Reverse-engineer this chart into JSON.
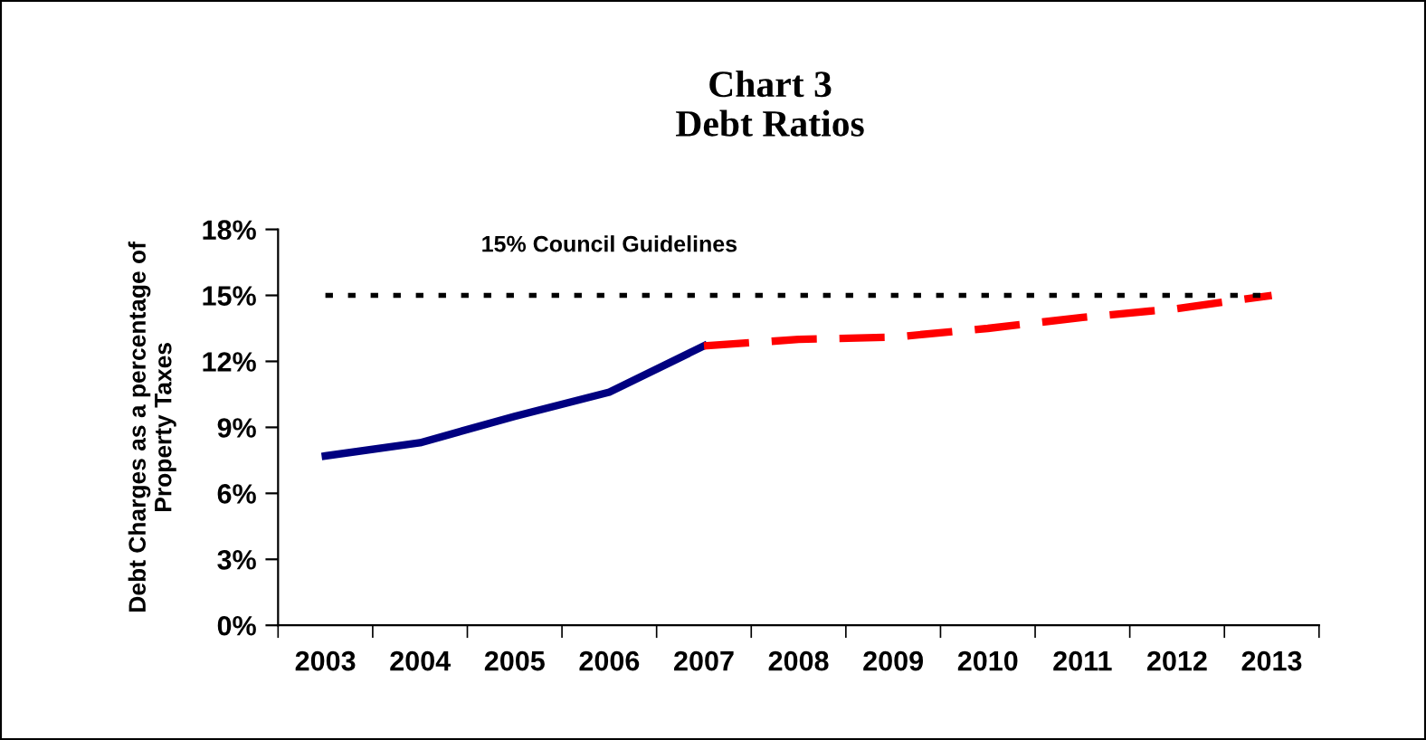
{
  "chart_data": {
    "type": "line",
    "title": "Chart 3\nDebt Ratios",
    "ylabel": "Debt Charges as a percentage of\nProperty Taxes",
    "categories": [
      "2003",
      "2004",
      "2005",
      "2006",
      "2007",
      "2008",
      "2009",
      "2010",
      "2011",
      "2012",
      "2013"
    ],
    "series": [
      {
        "color": "#000080",
        "line_style": "solid",
        "values": [
          7.7,
          8.3,
          9.5,
          10.6,
          12.7,
          null,
          null,
          null,
          null,
          null,
          null
        ]
      },
      {
        "color": "#ff0000",
        "line_style": "dashed",
        "values": [
          null,
          null,
          null,
          null,
          12.7,
          13.0,
          13.1,
          13.5,
          14.0,
          14.4,
          15.0
        ]
      }
    ],
    "ylim": [
      0,
      18
    ],
    "yticks": [
      {
        "value": 0,
        "label": "0%"
      },
      {
        "value": 3,
        "label": "3%"
      },
      {
        "value": 6,
        "label": "6%"
      },
      {
        "value": 9,
        "label": "9%"
      },
      {
        "value": 12,
        "label": "12%"
      },
      {
        "value": 15,
        "label": "15%"
      },
      {
        "value": 18,
        "label": "18%"
      }
    ],
    "ref_lines": [
      {
        "axis": "y",
        "value": 15,
        "label": "15% Council Guidelines",
        "color": "#000000",
        "line_style": "dotted"
      }
    ],
    "grid": false,
    "legend": false,
    "marker": "none"
  }
}
